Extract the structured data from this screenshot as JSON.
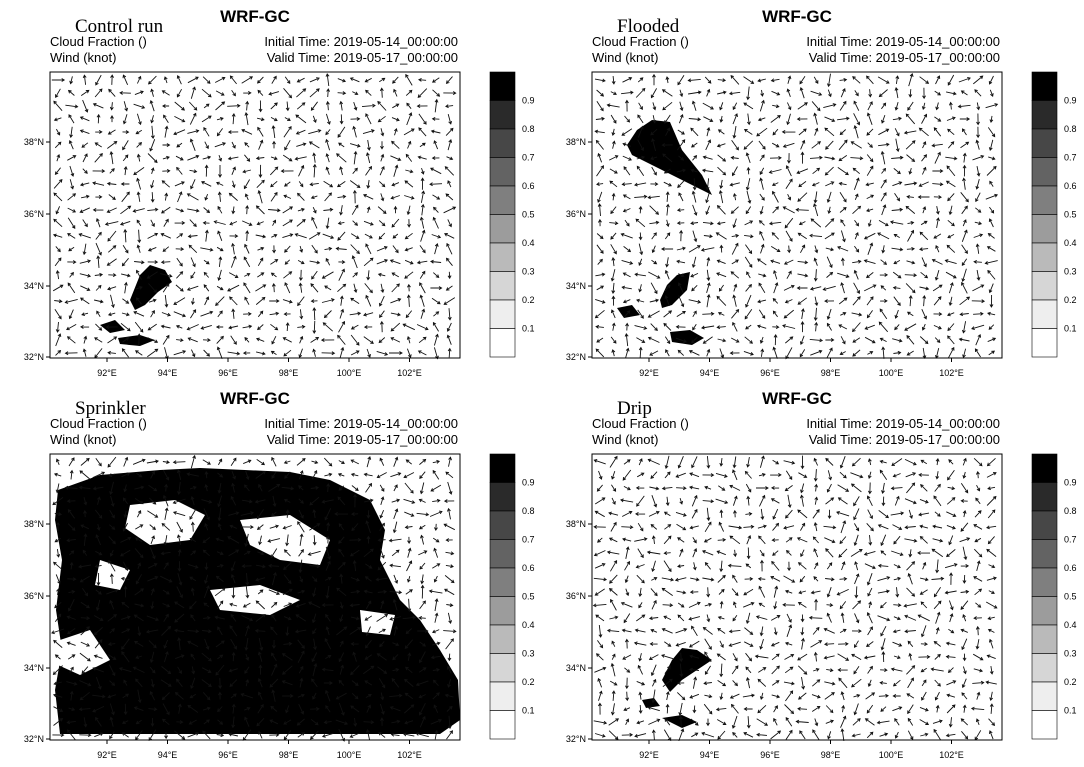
{
  "panels": [
    {
      "label": "Control run",
      "title": "WRF-GC",
      "field": "Cloud Fraction ()",
      "wind": "Wind (knot)",
      "initial_time": "Initial Time: 2019-05-14_00:00:00",
      "valid_time": "Valid Time: 2019-05-17_00:00:00"
    },
    {
      "label": "Flooded",
      "title": "WRF-GC",
      "field": "Cloud Fraction ()",
      "wind": "Wind (knot)",
      "initial_time": "Initial Time: 2019-05-14_00:00:00",
      "valid_time": "Valid Time: 2019-05-17_00:00:00"
    },
    {
      "label": "Sprinkler",
      "title": "WRF-GC",
      "field": "Cloud Fraction ()",
      "wind": "Wind (knot)",
      "initial_time": "Initial Time: 2019-05-14_00:00:00",
      "valid_time": "Valid Time: 2019-05-17_00:00:00"
    },
    {
      "label": "Drip",
      "title": "WRF-GC",
      "field": "Cloud Fraction ()",
      "wind": "Wind (knot)",
      "initial_time": "Initial Time: 2019-05-14_00:00:00",
      "valid_time": "Valid Time: 2019-05-17_00:00:00"
    }
  ],
  "axes": {
    "lat_labels": [
      "38°N",
      "36°N",
      "34°N",
      "32°N"
    ],
    "lon_labels": [
      "92°E",
      "94°E",
      "96°E",
      "98°E",
      "100°E",
      "102°E"
    ],
    "colorbar_labels": [
      "0.9",
      "0.8",
      "0.7",
      "0.6",
      "0.5",
      "0.4",
      "0.3",
      "0.2",
      "0.1"
    ]
  }
}
